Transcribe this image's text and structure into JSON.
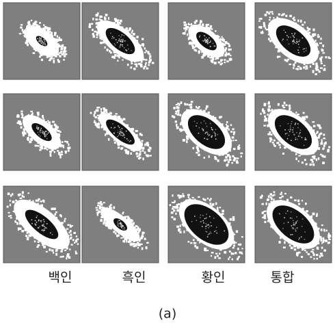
{
  "columns": [
    "백인",
    "흑인",
    "황인",
    "통합"
  ],
  "caption": "(a)"
}
